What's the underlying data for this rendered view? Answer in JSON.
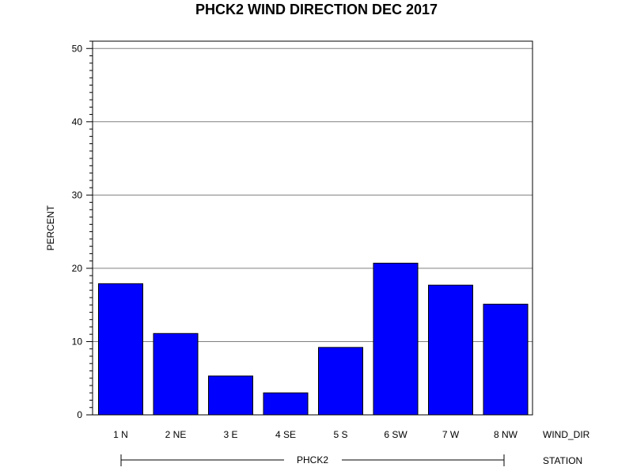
{
  "chart_data": {
    "type": "bar",
    "title": "PHCK2 WIND DIRECTION DEC 2017",
    "ylabel": "PERCENT",
    "xlabel": "WIND_DIR",
    "group_label": "STATION",
    "group_value": "PHCK2",
    "categories": [
      "1 N",
      "2 NE",
      "3 E",
      "4 SE",
      "5 S",
      "6 SW",
      "7 W",
      "8 NW"
    ],
    "values": [
      17.9,
      11.1,
      5.3,
      3.0,
      9.2,
      20.7,
      17.7,
      15.1
    ],
    "ylim": [
      0,
      51
    ],
    "yticks": [
      0,
      10,
      20,
      30,
      40,
      50
    ],
    "grid": true,
    "colors": {
      "bar": "#0000ff",
      "outline": "#000000",
      "grid": "#808080"
    }
  }
}
